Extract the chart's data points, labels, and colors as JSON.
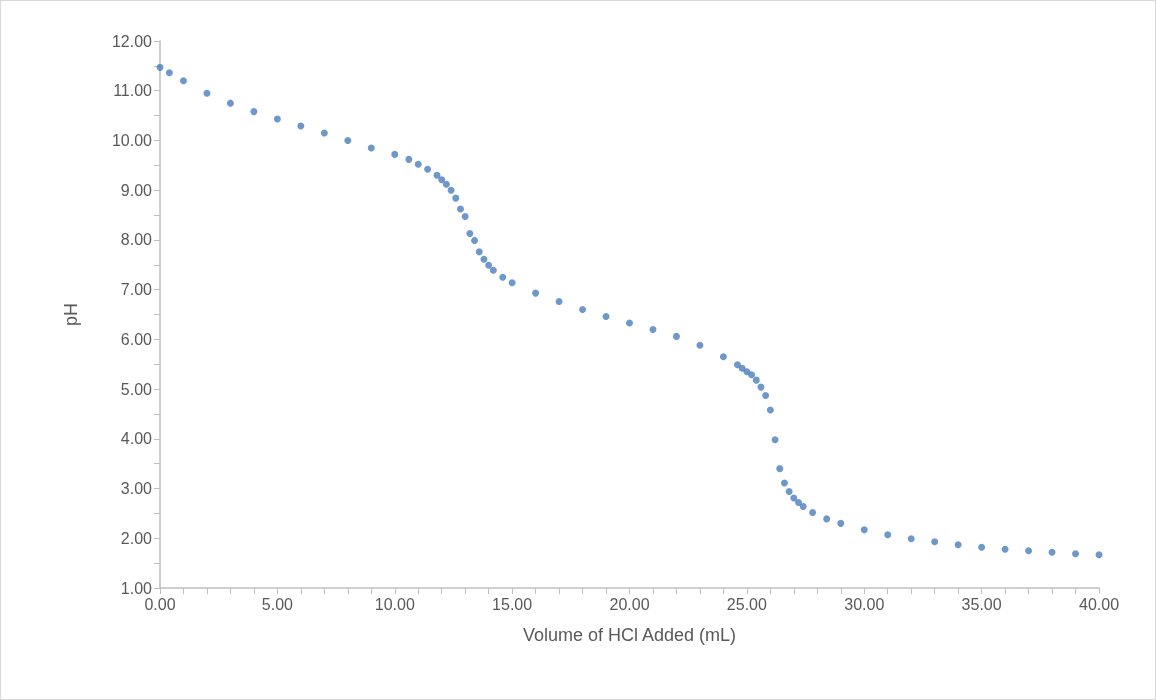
{
  "chart_data": {
    "type": "scatter",
    "xlabel": "Volume of HCl Added (mL)",
    "ylabel": "pH",
    "marker": "circle",
    "grid": false,
    "xlim": [
      0,
      40
    ],
    "ylim": [
      1,
      12
    ],
    "xticks": [
      {
        "value": 0,
        "label": "0.00"
      },
      {
        "value": 1,
        "label": null
      },
      {
        "value": 2,
        "label": null
      },
      {
        "value": 3,
        "label": null
      },
      {
        "value": 4,
        "label": null
      },
      {
        "value": 5,
        "label": "5.00"
      },
      {
        "value": 6,
        "label": null
      },
      {
        "value": 7,
        "label": null
      },
      {
        "value": 8,
        "label": null
      },
      {
        "value": 9,
        "label": null
      },
      {
        "value": 10,
        "label": "10.00"
      },
      {
        "value": 11,
        "label": null
      },
      {
        "value": 12,
        "label": null
      },
      {
        "value": 13,
        "label": null
      },
      {
        "value": 14,
        "label": null
      },
      {
        "value": 15,
        "label": "15.00"
      },
      {
        "value": 16,
        "label": null
      },
      {
        "value": 17,
        "label": null
      },
      {
        "value": 18,
        "label": null
      },
      {
        "value": 19,
        "label": null
      },
      {
        "value": 20,
        "label": "20.00"
      },
      {
        "value": 21,
        "label": null
      },
      {
        "value": 22,
        "label": null
      },
      {
        "value": 23,
        "label": null
      },
      {
        "value": 24,
        "label": null
      },
      {
        "value": 25,
        "label": "25.00"
      },
      {
        "value": 26,
        "label": null
      },
      {
        "value": 27,
        "label": null
      },
      {
        "value": 28,
        "label": null
      },
      {
        "value": 29,
        "label": null
      },
      {
        "value": 30,
        "label": "30.00"
      },
      {
        "value": 31,
        "label": null
      },
      {
        "value": 32,
        "label": null
      },
      {
        "value": 33,
        "label": null
      },
      {
        "value": 34,
        "label": null
      },
      {
        "value": 35,
        "label": "35.00"
      },
      {
        "value": 36,
        "label": null
      },
      {
        "value": 37,
        "label": null
      },
      {
        "value": 38,
        "label": null
      },
      {
        "value": 39,
        "label": null
      },
      {
        "value": 40,
        "label": "40.00"
      }
    ],
    "yticks": [
      {
        "value": 1,
        "label": "1.00"
      },
      {
        "value": 1.5,
        "label": null
      },
      {
        "value": 2,
        "label": "2.00"
      },
      {
        "value": 2.5,
        "label": null
      },
      {
        "value": 3,
        "label": "3.00"
      },
      {
        "value": 3.5,
        "label": null
      },
      {
        "value": 4,
        "label": "4.00"
      },
      {
        "value": 4.5,
        "label": null
      },
      {
        "value": 5,
        "label": "5.00"
      },
      {
        "value": 5.5,
        "label": null
      },
      {
        "value": 6,
        "label": "6.00"
      },
      {
        "value": 6.5,
        "label": null
      },
      {
        "value": 7,
        "label": "7.00"
      },
      {
        "value": 7.5,
        "label": null
      },
      {
        "value": 8,
        "label": "8.00"
      },
      {
        "value": 8.5,
        "label": null
      },
      {
        "value": 9,
        "label": "9.00"
      },
      {
        "value": 9.5,
        "label": null
      },
      {
        "value": 10,
        "label": "10.00"
      },
      {
        "value": 10.5,
        "label": null
      },
      {
        "value": 11,
        "label": "11.00"
      },
      {
        "value": 11.5,
        "label": null
      },
      {
        "value": 12,
        "label": "12.00"
      }
    ],
    "series": [
      {
        "color": "#4a7ebb",
        "x": [
          0,
          0.4,
          1,
          2,
          3,
          4,
          5,
          6,
          7,
          8,
          9,
          10,
          10.6,
          11,
          11.4,
          11.8,
          12,
          12.2,
          12.4,
          12.6,
          12.8,
          13,
          13.2,
          13.4,
          13.6,
          13.8,
          14,
          14.2,
          14.6,
          15,
          16,
          17,
          18,
          19,
          20,
          21,
          22,
          23,
          24,
          24.6,
          24.8,
          25,
          25.2,
          25.4,
          25.6,
          25.8,
          26,
          26.2,
          26.4,
          26.6,
          26.8,
          27,
          27.2,
          27.4,
          27.8,
          28.4,
          29,
          30,
          31,
          32,
          33,
          34,
          35,
          36,
          37,
          38,
          39,
          40
        ],
        "values": [
          11.47,
          11.36,
          11.2,
          10.95,
          10.75,
          10.58,
          10.43,
          10.29,
          10.15,
          10,
          9.85,
          9.72,
          9.62,
          9.52,
          9.42,
          9.3,
          9.21,
          9.12,
          9,
          8.84,
          8.62,
          8.47,
          8.13,
          7.99,
          7.76,
          7.61,
          7.49,
          7.39,
          7.25,
          7.14,
          6.93,
          6.76,
          6.6,
          6.46,
          6.33,
          6.2,
          6.06,
          5.88,
          5.65,
          5.49,
          5.42,
          5.35,
          5.29,
          5.18,
          5.04,
          4.87,
          4.58,
          3.98,
          3.4,
          3.11,
          2.94,
          2.81,
          2.72,
          2.64,
          2.52,
          2.39,
          2.3,
          2.17,
          2.07,
          1.99,
          1.93,
          1.87,
          1.82,
          1.78,
          1.75,
          1.72,
          1.69,
          1.67
        ]
      }
    ]
  }
}
